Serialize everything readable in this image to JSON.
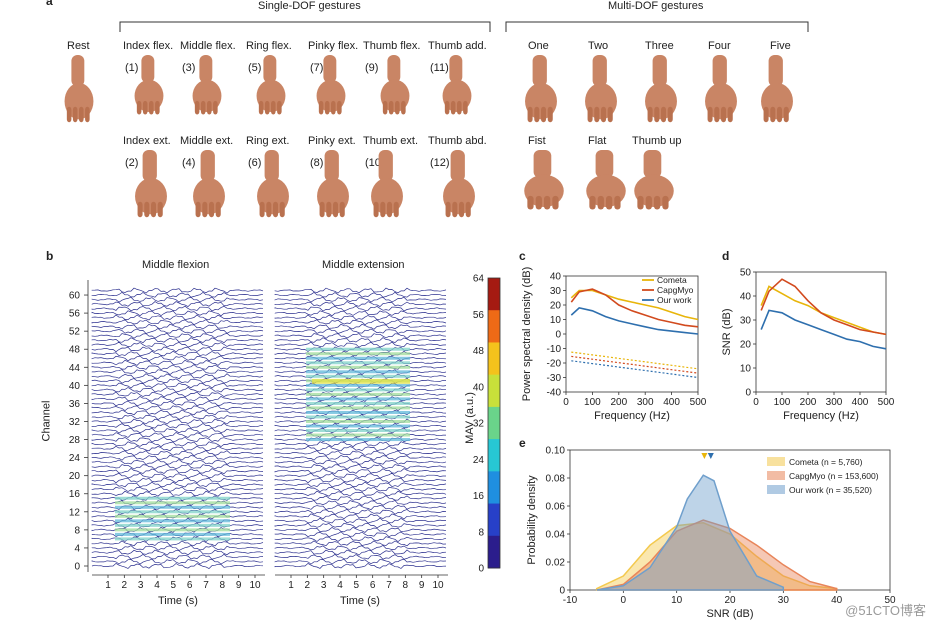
{
  "panel_a": {
    "letter": "a",
    "single_dof_title": "Single-DOF gestures",
    "multi_dof_title": "Multi-DOF gestures",
    "rest_label": "Rest",
    "single_row1": [
      {
        "label": "Index flex.",
        "num": "(1)"
      },
      {
        "label": "Middle flex.",
        "num": "(3)"
      },
      {
        "label": "Ring flex.",
        "num": "(5)"
      },
      {
        "label": "Pinky flex.",
        "num": "(7)"
      },
      {
        "label": "Thumb flex.",
        "num": "(9)"
      },
      {
        "label": "Thumb add.",
        "num": "(11)"
      }
    ],
    "single_row2": [
      {
        "label": "Index ext.",
        "num": "(2)"
      },
      {
        "label": "Middle ext.",
        "num": "(4)"
      },
      {
        "label": "Ring ext.",
        "num": "(6)"
      },
      {
        "label": "Pinky ext.",
        "num": "(8)"
      },
      {
        "label": "Thumb ext.",
        "num": "(10)"
      },
      {
        "label": "Thumb abd.",
        "num": "(12)"
      }
    ],
    "multi_row1": [
      "One",
      "Two",
      "Three",
      "Four",
      "Five"
    ],
    "multi_row2": [
      "Fist",
      "Flat",
      "Thumb up"
    ],
    "skin_color": "#c98565"
  },
  "panel_b": {
    "letter": "b",
    "left_title": "Middle flexion",
    "right_title": "Middle extension",
    "ylabel": "Channel",
    "xlabel": "Time (s)",
    "channel_ticks": [
      "60",
      "56",
      "52",
      "48",
      "44",
      "40",
      "36",
      "32",
      "28",
      "24",
      "20",
      "16",
      "12",
      "8",
      "4",
      "0"
    ],
    "time_ticks": [
      "1",
      "2",
      "3",
      "4",
      "5",
      "6",
      "7",
      "8",
      "9",
      "10"
    ],
    "colorbar_label": "MAV (a.u.)",
    "colorbar_ticks": [
      "64",
      "56",
      "48",
      "40",
      "32",
      "24",
      "16",
      "8",
      "0"
    ]
  },
  "chart_data": [
    {
      "type": "line",
      "panel": "c",
      "xlabel": "Frequency (Hz)",
      "ylabel": "Power spectral density (dB)",
      "xlim": [
        0,
        500
      ],
      "ylim": [
        -40,
        40
      ],
      "xticks": [
        "0",
        "100",
        "200",
        "300",
        "400",
        "500"
      ],
      "yticks": [
        "40",
        "30",
        "20",
        "10",
        "0",
        "-10",
        "-20",
        "-30",
        "-40"
      ],
      "legend": "top-right",
      "series": [
        {
          "name": "Cometa",
          "color": "#e8b50a",
          "x": [
            20,
            50,
            100,
            150,
            200,
            250,
            300,
            350,
            400,
            450,
            500
          ],
          "y": [
            25,
            30,
            30,
            27,
            24,
            22,
            20,
            18,
            15,
            12,
            10
          ]
        },
        {
          "name": "CapgMyo",
          "color": "#d24a1e",
          "x": [
            20,
            50,
            100,
            150,
            200,
            250,
            300,
            350,
            400,
            450,
            500
          ],
          "y": [
            22,
            29,
            31,
            27,
            20,
            16,
            13,
            10,
            8,
            6,
            5
          ]
        },
        {
          "name": "Our work",
          "color": "#2e6fae",
          "x": [
            20,
            50,
            100,
            150,
            200,
            250,
            300,
            350,
            400,
            450,
            500
          ],
          "y": [
            13,
            18,
            16,
            12,
            9,
            7,
            5,
            3,
            2,
            1,
            0
          ]
        }
      ]
    },
    {
      "type": "line",
      "panel": "d",
      "xlabel": "Frequency (Hz)",
      "ylabel": "SNR (dB)",
      "xlim": [
        0,
        500
      ],
      "ylim": [
        0,
        50
      ],
      "xticks": [
        "0",
        "100",
        "200",
        "300",
        "400",
        "500"
      ],
      "yticks": [
        "50",
        "40",
        "30",
        "20",
        "10",
        "0"
      ],
      "series": [
        {
          "color": "#e8b50a",
          "x": [
            20,
            50,
            100,
            150,
            200,
            250,
            300,
            350,
            400,
            450,
            500
          ],
          "y": [
            36,
            44,
            41,
            38,
            36,
            33,
            31,
            29,
            27,
            25,
            24
          ]
        },
        {
          "color": "#d24a1e",
          "x": [
            20,
            50,
            100,
            150,
            200,
            250,
            300,
            350,
            400,
            450,
            500
          ],
          "y": [
            34,
            42,
            47,
            44,
            38,
            33,
            30,
            28,
            26,
            25,
            24
          ]
        },
        {
          "color": "#2e6fae",
          "x": [
            20,
            50,
            100,
            150,
            200,
            250,
            300,
            350,
            400,
            450,
            500
          ],
          "y": [
            26,
            34,
            33,
            30,
            28,
            26,
            24,
            22,
            21,
            19,
            18
          ]
        }
      ]
    },
    {
      "type": "area",
      "panel": "e",
      "xlabel": "SNR (dB)",
      "ylabel": "Probability density",
      "xlim": [
        -10,
        50
      ],
      "ylim": [
        0,
        0.1
      ],
      "xticks": [
        "-10",
        "0",
        "10",
        "20",
        "30",
        "40",
        "50"
      ],
      "yticks": [
        "0.10",
        "0.08",
        "0.06",
        "0.04",
        "0.02",
        "0"
      ],
      "legend": "top-right",
      "series": [
        {
          "name": "Cometa (n = 5,760)",
          "color": "#f3c94e",
          "x": [
            -5,
            0,
            5,
            10,
            15,
            20,
            25,
            30,
            35,
            40
          ],
          "y": [
            0.001,
            0.01,
            0.032,
            0.046,
            0.048,
            0.04,
            0.024,
            0.01,
            0.003,
            0.001
          ]
        },
        {
          "name": "CapgMyo (n = 153,600)",
          "color": "#e8855a",
          "x": [
            -5,
            0,
            5,
            10,
            15,
            20,
            25,
            30,
            35,
            40
          ],
          "y": [
            0,
            0.004,
            0.02,
            0.042,
            0.05,
            0.044,
            0.032,
            0.018,
            0.006,
            0.001
          ]
        },
        {
          "name": "Our work (n = 35,520)",
          "color": "#6f9fcc",
          "x": [
            -5,
            0,
            5,
            10,
            12,
            15,
            17,
            20,
            25,
            30
          ],
          "y": [
            0,
            0.003,
            0.016,
            0.045,
            0.065,
            0.082,
            0.078,
            0.042,
            0.01,
            0.002
          ]
        }
      ]
    }
  ],
  "panel_c": {
    "letter": "c"
  },
  "panel_d": {
    "letter": "d"
  },
  "panel_e": {
    "letter": "e"
  },
  "watermark": "@51CTO博客"
}
